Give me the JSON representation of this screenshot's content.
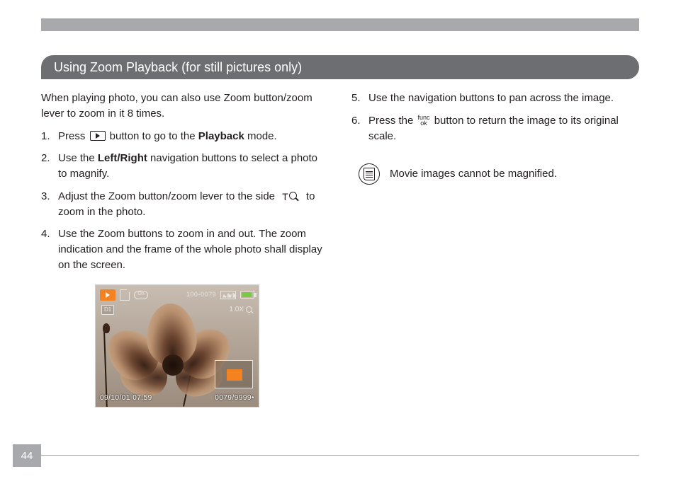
{
  "page_number": "44",
  "section_title": "Using Zoom Playback (for still pictures only)",
  "intro": "When playing photo, you can also use Zoom button/zoom lever to zoom in it 8 times.",
  "steps": {
    "s1_a": "Press ",
    "s1_b": " button to go to the ",
    "s1_bold": "Playback",
    "s1_c": " mode.",
    "s2_a": "Use the ",
    "s2_bold": "Left/Right",
    "s2_b": " navigation buttons to select a photo to magnify.",
    "s3_a": "Adjust the Zoom button/zoom lever to the side ",
    "s3_b": " to zoom in the photo.",
    "s4": "Use the Zoom buttons to zoom in and out. The zoom indication and the frame of the whole photo shall display on the screen.",
    "s5": "Use the navigation buttons to pan across the image.",
    "s6_a": "Press the ",
    "s6_b": " button to return the image to its original scale."
  },
  "func_label_top": "func",
  "func_label_bottom": "ok",
  "zoom_t_label": "T",
  "note_text": "Movie images cannot be magnified.",
  "lcd": {
    "on_label": "On",
    "counter": "100-0079",
    "dpof": "D1",
    "zoom": "1.0X",
    "datetime": "09/10/01 07:59",
    "file_info": "0079/9999•",
    "colors": {
      "orange": "#f58220",
      "battery_fill": "#7ac943",
      "overlay_text": "#e8e6e2"
    }
  },
  "colors": {
    "header_bg": "#6d6e71",
    "bar_bg": "#a7a9ac",
    "text": "#231f20"
  }
}
